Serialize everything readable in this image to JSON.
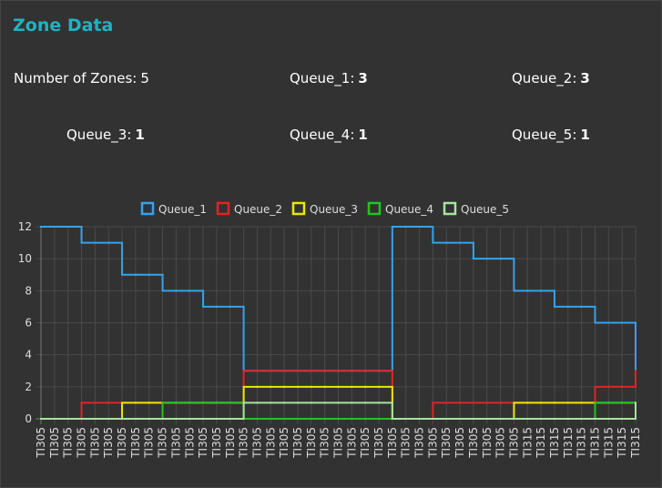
{
  "header": {
    "title": "Zone Data"
  },
  "stats": [
    {
      "label": "Number of Zones:",
      "value": 5
    },
    {
      "label": "Queue_1:",
      "value": 3
    },
    {
      "label": "Queue_2:",
      "value": 3
    },
    {
      "label": "Queue_3:",
      "value": 1
    },
    {
      "label": "Queue_4:",
      "value": 1
    },
    {
      "label": "Queue_5:",
      "value": 1
    }
  ],
  "chart_data": {
    "type": "line",
    "stepped": true,
    "grid": true,
    "legend": "top",
    "categories": [
      "TI305",
      "TI305",
      "TI305",
      "TI305",
      "TI305",
      "TI305",
      "TI305",
      "TI305",
      "TI305",
      "TI305",
      "TI305",
      "TI305",
      "TI305",
      "TI305",
      "TI305",
      "TI305",
      "TI305",
      "TI305",
      "TI305",
      "TI305",
      "TI305",
      "TI305",
      "TI305",
      "TI305",
      "TI305",
      "TI305",
      "TI305",
      "TI305",
      "TI305",
      "TI305",
      "TI305",
      "TI305",
      "TI305",
      "TI305",
      "TI305",
      "TI305",
      "TI315",
      "TI315",
      "TI315",
      "TI315",
      "TI315",
      "TI315",
      "TI315",
      "TI315",
      "TI315"
    ],
    "ylim": [
      0,
      12
    ],
    "yticks": [
      0,
      2,
      4,
      6,
      8,
      10,
      12
    ],
    "series": [
      {
        "name": "Queue_1",
        "color": "#36a2eb",
        "values": [
          12,
          12,
          12,
          11,
          11,
          11,
          9,
          9,
          9,
          8,
          8,
          8,
          7,
          7,
          7,
          3,
          3,
          3,
          3,
          3,
          3,
          3,
          3,
          3,
          3,
          3,
          12,
          12,
          12,
          11,
          11,
          11,
          10,
          10,
          10,
          8,
          8,
          8,
          7,
          7,
          7,
          6,
          6,
          6,
          3
        ]
      },
      {
        "name": "Queue_2",
        "color": "#e02424",
        "values": [
          0,
          0,
          0,
          1,
          1,
          1,
          1,
          1,
          1,
          1,
          1,
          1,
          1,
          1,
          1,
          3,
          3,
          3,
          3,
          3,
          3,
          3,
          3,
          3,
          3,
          3,
          0,
          0,
          0,
          1,
          1,
          1,
          1,
          1,
          1,
          1,
          1,
          1,
          1,
          1,
          1,
          2,
          2,
          2,
          3
        ]
      },
      {
        "name": "Queue_3",
        "color": "#e8e800",
        "values": [
          0,
          0,
          0,
          0,
          0,
          0,
          1,
          1,
          1,
          1,
          1,
          1,
          1,
          1,
          1,
          2,
          2,
          2,
          2,
          2,
          2,
          2,
          2,
          2,
          2,
          2,
          0,
          0,
          0,
          0,
          0,
          0,
          0,
          0,
          0,
          1,
          1,
          1,
          1,
          1,
          1,
          1,
          1,
          1,
          1
        ]
      },
      {
        "name": "Queue_4",
        "color": "#22c422",
        "values": [
          0,
          0,
          0,
          0,
          0,
          0,
          0,
          0,
          0,
          1,
          1,
          1,
          1,
          1,
          1,
          0,
          0,
          0,
          0,
          0,
          0,
          0,
          0,
          0,
          0,
          0,
          0,
          0,
          0,
          0,
          0,
          0,
          0,
          0,
          0,
          0,
          0,
          0,
          0,
          0,
          0,
          1,
          1,
          1,
          1
        ]
      },
      {
        "name": "Queue_5",
        "color": "#a6e3a0",
        "values": [
          0,
          0,
          0,
          0,
          0,
          0,
          0,
          0,
          0,
          0,
          0,
          0,
          0,
          0,
          0,
          1,
          1,
          1,
          1,
          1,
          1,
          1,
          1,
          1,
          1,
          1,
          0,
          0,
          0,
          0,
          0,
          0,
          0,
          0,
          0,
          0,
          0,
          0,
          0,
          0,
          0,
          0,
          0,
          0,
          1
        ]
      }
    ]
  }
}
